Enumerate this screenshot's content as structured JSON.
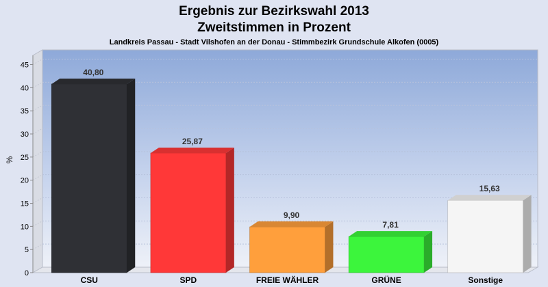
{
  "chart_data": {
    "type": "bar",
    "title": "Ergebnis zur Bezirkswahl 2013",
    "title_line2": "Zweitstimmen in Prozent",
    "subtitle": "Landkreis Passau - Stadt Vilshofen an der Donau - Stimmbezirk Grundschule Alkofen (0005)",
    "ylabel": "%",
    "ylim": [
      0,
      47
    ],
    "yticks": [
      0,
      5,
      10,
      15,
      20,
      25,
      30,
      35,
      40,
      45
    ],
    "categories": [
      "CSU",
      "SPD",
      "FREIE WÄHLER",
      "GRÜNE",
      "Sonstige"
    ],
    "values": [
      40.8,
      25.87,
      9.9,
      7.81,
      15.63
    ],
    "value_labels": [
      "40,80",
      "25,87",
      "9,90",
      "7,81",
      "15,63"
    ],
    "colors": [
      "#2f3035",
      "#ff3838",
      "#ff9f3c",
      "#3cf53c",
      "#f5f5f5"
    ],
    "grid": true,
    "legend": "none"
  }
}
